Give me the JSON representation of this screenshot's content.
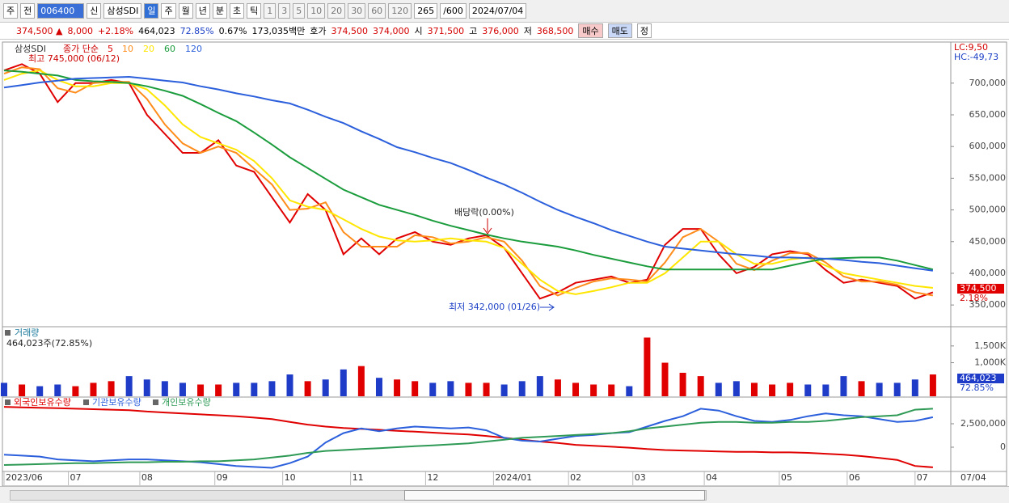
{
  "toolbar": {
    "items": [
      "주",
      "전",
      "006400",
      "신",
      "삼성SDI",
      "일",
      "주",
      "월",
      "년",
      "분",
      "초",
      "틱",
      "1",
      "3",
      "5",
      "10",
      "20",
      "30",
      "60",
      "120",
      "265",
      "/600",
      "2024/07/04"
    ]
  },
  "info": {
    "items": [
      "374,500 ▲",
      "8,000",
      "+2.18%",
      "464,023",
      "72.85%",
      "0.67%",
      "173,035백만",
      "호가",
      "374,500",
      "374,000",
      "시",
      "371,500",
      "고",
      "376,000",
      "저",
      "368,500",
      "매수",
      "매도",
      "정"
    ]
  },
  "chart_data": [
    {
      "type": "line",
      "title": "삼성SDI",
      "legend_title": "종가 단순",
      "x": [
        0,
        5,
        10,
        15,
        20,
        25,
        30,
        35,
        40,
        45,
        50,
        55,
        60,
        65,
        70,
        75,
        80,
        85,
        90,
        95,
        100,
        105,
        110,
        115,
        120,
        125,
        130,
        135,
        140,
        145,
        150,
        155,
        160,
        165,
        170,
        175,
        180,
        185,
        190,
        195,
        200,
        205,
        210,
        215,
        220,
        225,
        230,
        235,
        240,
        245,
        250,
        255,
        260
      ],
      "xlim": [
        0,
        265
      ],
      "xticks": [
        {
          "value": 0,
          "label": "2023/06"
        },
        {
          "value": 18,
          "label": "07"
        },
        {
          "value": 38,
          "label": "08"
        },
        {
          "value": 59,
          "label": "09"
        },
        {
          "value": 78,
          "label": "10"
        },
        {
          "value": 97,
          "label": "11"
        },
        {
          "value": 118,
          "label": "12"
        },
        {
          "value": 137,
          "label": "2024/01"
        },
        {
          "value": 158,
          "label": "02"
        },
        {
          "value": 176,
          "label": "03"
        },
        {
          "value": 196,
          "label": "04"
        },
        {
          "value": 217,
          "label": "05"
        },
        {
          "value": 236,
          "label": "06"
        },
        {
          "value": 255,
          "label": "07"
        }
      ],
      "x_end_label": "07/04",
      "ylim": [
        317000,
        761000
      ],
      "yticks": [
        {
          "value": 350000,
          "label": "350,000"
        },
        {
          "value": 400000,
          "label": "400,000"
        },
        {
          "value": 450000,
          "label": "450,000"
        },
        {
          "value": 500000,
          "label": "500,000"
        },
        {
          "value": 550000,
          "label": "550,000"
        },
        {
          "value": 600000,
          "label": "600,000"
        },
        {
          "value": 650000,
          "label": "650,000"
        },
        {
          "value": 700000,
          "label": "700,000"
        }
      ],
      "series": [
        {
          "name": "5",
          "color": "#e00000",
          "values": [
            720000,
            730000,
            715000,
            670000,
            700000,
            700000,
            705000,
            700000,
            650000,
            620000,
            590000,
            590000,
            610000,
            570000,
            560000,
            520000,
            480000,
            525000,
            500000,
            430000,
            455000,
            430000,
            455000,
            465000,
            450000,
            445000,
            455000,
            460000,
            440000,
            400000,
            360000,
            370000,
            385000,
            390000,
            395000,
            385000,
            390000,
            445000,
            470000,
            470000,
            430000,
            400000,
            410000,
            430000,
            435000,
            430000,
            405000,
            385000,
            390000,
            385000,
            380000,
            360000,
            370000
          ]
        },
        {
          "name": "10",
          "color": "#ff8c1a",
          "values": [
            715000,
            725000,
            722000,
            692000,
            685000,
            700000,
            702000,
            702000,
            675000,
            635000,
            605000,
            590000,
            600000,
            590000,
            565000,
            540000,
            500000,
            502000,
            512000,
            465000,
            442000,
            442000,
            442000,
            460000,
            457000,
            447000,
            450000,
            457000,
            450000,
            420000,
            380000,
            365000,
            377000,
            387000,
            392000,
            390000,
            387000,
            417000,
            457000,
            470000,
            450000,
            415000,
            405000,
            420000,
            432000,
            432000,
            417000,
            395000,
            387000,
            387000,
            382000,
            370000,
            365000
          ]
        },
        {
          "name": "20",
          "color": "#ffe600",
          "values": [
            705000,
            715000,
            720000,
            705000,
            695000,
            695000,
            700000,
            700000,
            690000,
            665000,
            635000,
            615000,
            605000,
            595000,
            577000,
            550000,
            515000,
            505000,
            500000,
            485000,
            470000,
            458000,
            452000,
            450000,
            452000,
            455000,
            452000,
            450000,
            440000,
            415000,
            390000,
            372000,
            367000,
            372000,
            378000,
            385000,
            385000,
            400000,
            425000,
            450000,
            450000,
            430000,
            415000,
            415000,
            422000,
            425000,
            412000,
            400000,
            395000,
            390000,
            385000,
            380000,
            377000
          ]
        },
        {
          "name": "60",
          "color": "#1a9c3c",
          "values": [
            720000,
            718000,
            715000,
            712000,
            705000,
            703000,
            702000,
            700000,
            695000,
            688000,
            680000,
            667000,
            653000,
            640000,
            622000,
            603000,
            583000,
            566000,
            549000,
            532000,
            520000,
            508000,
            500000,
            492000,
            483000,
            475000,
            468000,
            461000,
            455000,
            450000,
            446000,
            442000,
            436000,
            429000,
            423000,
            417000,
            411000,
            406000,
            406000,
            406000,
            406000,
            406000,
            406000,
            406000,
            412000,
            418000,
            423000,
            424000,
            425000,
            425000,
            420000,
            413000,
            406000
          ]
        },
        {
          "name": "120",
          "color": "#2b5fdc",
          "values": [
            693000,
            697000,
            701000,
            704000,
            707000,
            708000,
            709000,
            710000,
            707000,
            704000,
            701000,
            695000,
            690000,
            684000,
            679000,
            673000,
            668000,
            658000,
            647000,
            637000,
            624000,
            612000,
            599000,
            591000,
            582000,
            574000,
            563000,
            551000,
            540000,
            527000,
            513000,
            500000,
            489000,
            479000,
            468000,
            459000,
            450000,
            442000,
            439000,
            436000,
            433000,
            430000,
            428000,
            425000,
            425000,
            424000,
            423000,
            421000,
            418000,
            416000,
            412000,
            408000,
            404000
          ]
        }
      ],
      "annotations": {
        "high": "최고 745,000 (06/12)",
        "dividend": "배당락(0.00%)",
        "low": "최저 342,000 (01/26)",
        "lc": "LC:9,50",
        "hc": "HC:-49,73",
        "last_price": "374,500",
        "change": "2.18%"
      }
    },
    {
      "type": "bar",
      "title": "거래량",
      "subtitle": "464,023주(72.85%)",
      "x": [
        0,
        5,
        10,
        15,
        20,
        25,
        30,
        35,
        40,
        45,
        50,
        55,
        60,
        65,
        70,
        75,
        80,
        85,
        90,
        95,
        100,
        105,
        110,
        115,
        120,
        125,
        130,
        135,
        140,
        145,
        150,
        155,
        160,
        165,
        170,
        175,
        180,
        185,
        190,
        195,
        200,
        205,
        210,
        215,
        220,
        225,
        230,
        235,
        240,
        245,
        250,
        255,
        260
      ],
      "xlim": [
        0,
        265
      ],
      "ylim": [
        0,
        2050000
      ],
      "yticks": [
        {
          "value": 1000000,
          "label": "1,000K"
        },
        {
          "value": 1500000,
          "label": "1,500K"
        }
      ],
      "up_color": "#e00000",
      "down_color": "#1e3cc8",
      "values": [
        400000,
        350000,
        300000,
        350000,
        300000,
        400000,
        450000,
        600000,
        500000,
        450000,
        400000,
        350000,
        350000,
        400000,
        400000,
        450000,
        650000,
        450000,
        500000,
        800000,
        900000,
        550000,
        500000,
        450000,
        400000,
        450000,
        400000,
        400000,
        350000,
        450000,
        600000,
        500000,
        400000,
        350000,
        350000,
        300000,
        1750000,
        1000000,
        700000,
        600000,
        400000,
        450000,
        400000,
        350000,
        400000,
        350000,
        350000,
        600000,
        450000,
        400000,
        400000,
        500000,
        650000
      ],
      "value_tag": "464,023",
      "pct_tag": "72.85%"
    },
    {
      "type": "line",
      "x": [
        0,
        5,
        10,
        15,
        20,
        25,
        30,
        35,
        40,
        45,
        50,
        55,
        60,
        65,
        70,
        75,
        80,
        85,
        90,
        95,
        100,
        105,
        110,
        115,
        120,
        125,
        130,
        135,
        140,
        145,
        150,
        155,
        160,
        165,
        170,
        175,
        180,
        185,
        190,
        195,
        200,
        205,
        210,
        215,
        220,
        225,
        230,
        235,
        240,
        245,
        250,
        255,
        260
      ],
      "xlim": [
        0,
        265
      ],
      "ylim": [
        -2500000,
        5170000
      ],
      "yticks": [
        0,
        {
          "value": 2500000,
          "label": "2,500,000"
        }
      ],
      "series": [
        {
          "name": "외국인보유수량",
          "color": "#e00000",
          "values": [
            4300000,
            4250000,
            4200000,
            4150000,
            4100000,
            4050000,
            4000000,
            3950000,
            3800000,
            3700000,
            3600000,
            3500000,
            3400000,
            3300000,
            3150000,
            3000000,
            2700000,
            2400000,
            2200000,
            2050000,
            1950000,
            1850000,
            1750000,
            1650000,
            1550000,
            1450000,
            1350000,
            1200000,
            1000000,
            800000,
            600000,
            450000,
            250000,
            150000,
            50000,
            -50000,
            -200000,
            -300000,
            -350000,
            -400000,
            -450000,
            -500000,
            -500000,
            -550000,
            -550000,
            -600000,
            -700000,
            -800000,
            -950000,
            -1150000,
            -1350000,
            -2000000,
            -2150000
          ]
        },
        {
          "name": "기관보유수량",
          "color": "#2b5fdc",
          "values": [
            -800000,
            -900000,
            -1000000,
            -1300000,
            -1400000,
            -1500000,
            -1400000,
            -1300000,
            -1300000,
            -1400000,
            -1500000,
            -1600000,
            -1800000,
            -2000000,
            -2100000,
            -2200000,
            -1700000,
            -1000000,
            500000,
            1500000,
            2000000,
            1700000,
            2000000,
            2200000,
            2100000,
            2000000,
            2100000,
            1800000,
            1000000,
            700000,
            600000,
            900000,
            1200000,
            1300000,
            1500000,
            1600000,
            2200000,
            2800000,
            3300000,
            4100000,
            3900000,
            3300000,
            2800000,
            2700000,
            2900000,
            3300000,
            3600000,
            3400000,
            3300000,
            3000000,
            2700000,
            2800000,
            3200000
          ]
        },
        {
          "name": "개인보유수량",
          "color": "#2e9a55",
          "values": [
            -1900000,
            -1850000,
            -1800000,
            -1750000,
            -1700000,
            -1700000,
            -1650000,
            -1600000,
            -1600000,
            -1550000,
            -1550000,
            -1500000,
            -1500000,
            -1400000,
            -1300000,
            -1100000,
            -900000,
            -600000,
            -400000,
            -300000,
            -200000,
            -100000,
            0,
            100000,
            200000,
            300000,
            400000,
            600000,
            800000,
            1000000,
            1100000,
            1200000,
            1300000,
            1400000,
            1500000,
            1700000,
            2000000,
            2200000,
            2400000,
            2600000,
            2700000,
            2700000,
            2600000,
            2600000,
            2700000,
            2700000,
            2800000,
            3000000,
            3200000,
            3300000,
            3400000,
            4000000,
            4100000
          ]
        }
      ]
    }
  ]
}
